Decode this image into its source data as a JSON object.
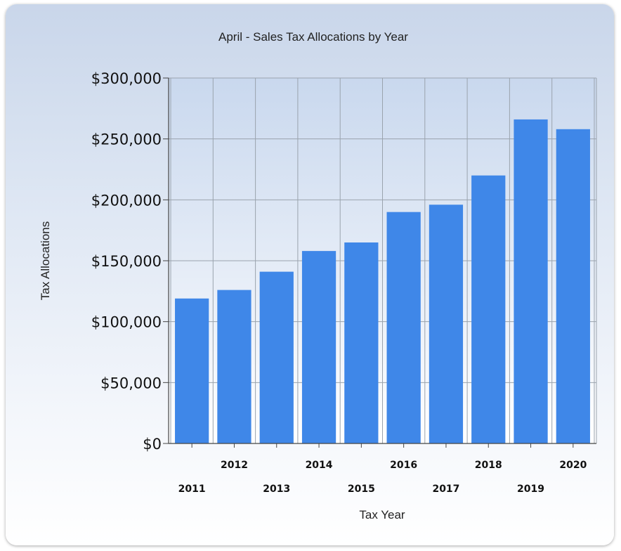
{
  "chart_data": {
    "type": "bar",
    "title": "April - Sales Tax Allocations by Year",
    "xlabel": "Tax Year",
    "ylabel": "Tax Allocations",
    "categories": [
      "2011",
      "2012",
      "2013",
      "2014",
      "2015",
      "2016",
      "2017",
      "2018",
      "2019",
      "2020"
    ],
    "values": [
      119000,
      126000,
      141000,
      158000,
      165000,
      190000,
      196000,
      220000,
      266000,
      258000
    ],
    "ylim": [
      0,
      300000
    ],
    "yticks": [
      "$0",
      "$50,000",
      "$100,000",
      "$150,000",
      "$200,000",
      "$250,000",
      "$300,000"
    ],
    "grid": true,
    "legend": "none",
    "bar_color": "#3f87e8"
  }
}
